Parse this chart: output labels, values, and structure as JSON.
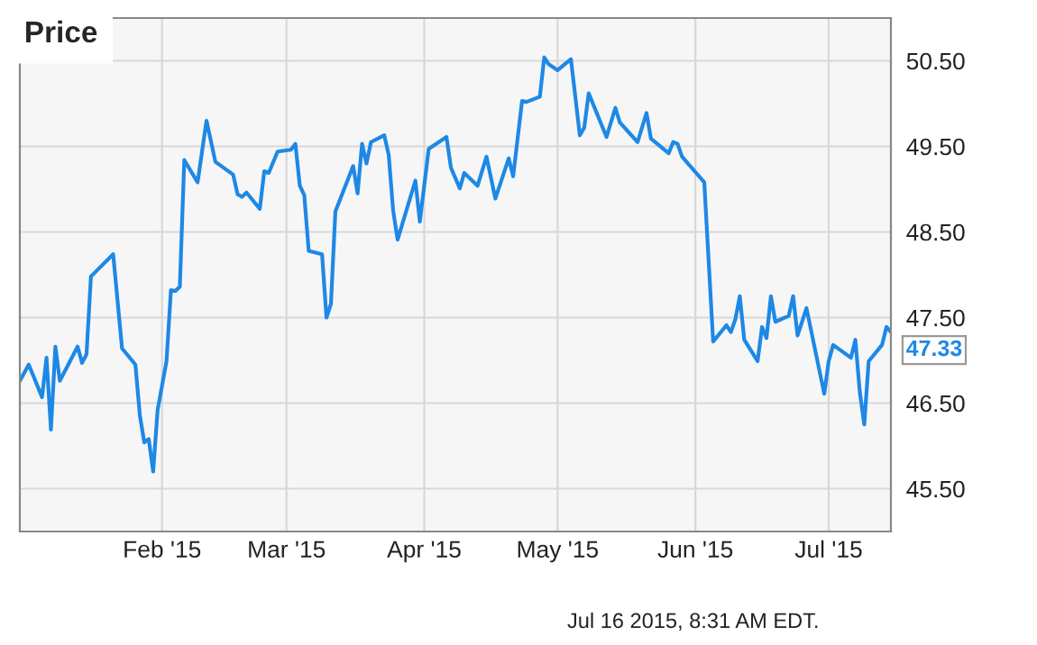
{
  "chart_data": {
    "type": "line",
    "title": "Price",
    "x": [
      "2014-12-31",
      "2015-01-02",
      "2015-01-05",
      "2015-01-06",
      "2015-01-07",
      "2015-01-08",
      "2015-01-09",
      "2015-01-13",
      "2015-01-14",
      "2015-01-15",
      "2015-01-16",
      "2015-01-21",
      "2015-01-23",
      "2015-01-26",
      "2015-01-27",
      "2015-01-28",
      "2015-01-29",
      "2015-01-30",
      "2015-01-31",
      "2015-02-02",
      "2015-02-03",
      "2015-02-04",
      "2015-02-05",
      "2015-02-06",
      "2015-02-09",
      "2015-02-11",
      "2015-02-13",
      "2015-02-17",
      "2015-02-18",
      "2015-02-19",
      "2015-02-20",
      "2015-02-23",
      "2015-02-24",
      "2015-02-25",
      "2015-02-27",
      "2015-03-02",
      "2015-03-03",
      "2015-03-04",
      "2015-03-05",
      "2015-03-06",
      "2015-03-09",
      "2015-03-10",
      "2015-03-11",
      "2015-03-12",
      "2015-03-16",
      "2015-03-17",
      "2015-03-18",
      "2015-03-19",
      "2015-03-20",
      "2015-03-23",
      "2015-03-24",
      "2015-03-25",
      "2015-03-26",
      "2015-03-30",
      "2015-03-31",
      "2015-04-02",
      "2015-04-06",
      "2015-04-07",
      "2015-04-09",
      "2015-04-10",
      "2015-04-13",
      "2015-04-15",
      "2015-04-17",
      "2015-04-20",
      "2015-04-21",
      "2015-04-23",
      "2015-04-24",
      "2015-04-27",
      "2015-04-28",
      "2015-04-29",
      "2015-05-01",
      "2015-05-04",
      "2015-05-06",
      "2015-05-07",
      "2015-05-08",
      "2015-05-12",
      "2015-05-14",
      "2015-05-15",
      "2015-05-19",
      "2015-05-21",
      "2015-05-22",
      "2015-05-26",
      "2015-05-27",
      "2015-05-28",
      "2015-05-29",
      "2015-06-03",
      "2015-06-05",
      "2015-06-08",
      "2015-06-09",
      "2015-06-10",
      "2015-06-11",
      "2015-06-12",
      "2015-06-15",
      "2015-06-16",
      "2015-06-17",
      "2015-06-18",
      "2015-06-19",
      "2015-06-22",
      "2015-06-23",
      "2015-06-24",
      "2015-06-26",
      "2015-06-30",
      "2015-07-01",
      "2015-07-02",
      "2015-07-06",
      "2015-07-07",
      "2015-07-08",
      "2015-07-09",
      "2015-07-10",
      "2015-07-13",
      "2015-07-14",
      "2015-07-15"
    ],
    "series": [
      {
        "color": "#1e88e5",
        "values": [
          46.76,
          46.95,
          46.57,
          47.03,
          46.19,
          47.16,
          46.76,
          47.16,
          46.97,
          47.07,
          47.98,
          48.24,
          47.14,
          46.95,
          46.36,
          46.04,
          46.08,
          45.7,
          46.42,
          46.99,
          47.82,
          47.81,
          47.86,
          49.34,
          49.08,
          49.8,
          49.32,
          49.17,
          48.94,
          48.91,
          48.96,
          48.77,
          49.21,
          49.19,
          49.44,
          49.46,
          49.53,
          49.04,
          48.93,
          48.28,
          48.24,
          47.5,
          47.66,
          48.74,
          49.27,
          48.95,
          49.53,
          49.3,
          49.55,
          49.63,
          49.4,
          48.75,
          48.41,
          49.1,
          48.62,
          49.47,
          49.61,
          49.25,
          49.01,
          49.19,
          49.04,
          49.38,
          48.89,
          49.36,
          49.15,
          50.03,
          50.02,
          50.08,
          50.54,
          50.46,
          50.39,
          50.52,
          49.63,
          49.72,
          50.12,
          49.61,
          49.95,
          49.78,
          49.55,
          49.89,
          49.59,
          49.42,
          49.55,
          49.53,
          49.38,
          49.08,
          47.22,
          47.41,
          47.33,
          47.48,
          47.75,
          47.24,
          46.99,
          47.39,
          47.26,
          47.75,
          47.45,
          47.52,
          47.75,
          47.29,
          47.61,
          46.61,
          46.99,
          47.18,
          47.03,
          47.24,
          46.63,
          46.25,
          46.99,
          47.18,
          47.39,
          47.33
        ],
        "value_labels": [
          null,
          null,
          null,
          null,
          null,
          null,
          null,
          null,
          null,
          null,
          null,
          null,
          null,
          null,
          null,
          null,
          null,
          null,
          null,
          null,
          null,
          null,
          null,
          null,
          null,
          null,
          null,
          null,
          null,
          null,
          null,
          null,
          null,
          null,
          null,
          null,
          null,
          null,
          null,
          null,
          null,
          null,
          null,
          null,
          null,
          null,
          null,
          null,
          null,
          null,
          null,
          null,
          null,
          null,
          null,
          null,
          null,
          null,
          null,
          null,
          null,
          null,
          null,
          null,
          null,
          null,
          null,
          null,
          null,
          null,
          null,
          null,
          null,
          null,
          null,
          null,
          null,
          null,
          null,
          null,
          null,
          null,
          null,
          null,
          null,
          null,
          null,
          null,
          null,
          null,
          null,
          null,
          null,
          null,
          null,
          null,
          null,
          null,
          null,
          null,
          null,
          null,
          null,
          null,
          null,
          null,
          null,
          null,
          null,
          null,
          null,
          "47.33"
        ]
      }
    ],
    "xlim": [
      "2014-12-31",
      "2015-07-15"
    ],
    "xticks": [
      {
        "value": "2015-02-01",
        "label": "Feb '15"
      },
      {
        "value": "2015-03-01",
        "label": "Mar '15"
      },
      {
        "value": "2015-04-01",
        "label": "Apr '15"
      },
      {
        "value": "2015-05-01",
        "label": "May '15"
      },
      {
        "value": "2015-06-01",
        "label": "Jun '15"
      },
      {
        "value": "2015-07-01",
        "label": "Jul '15"
      }
    ],
    "ylim": [
      45,
      51
    ],
    "yticks": [
      {
        "value": 45.5,
        "label": "45.50"
      },
      {
        "value": 46.5,
        "label": "46.50"
      },
      {
        "value": 47.5,
        "label": "47.50"
      },
      {
        "value": 48.5,
        "label": "48.50"
      },
      {
        "value": 49.5,
        "label": "49.50"
      },
      {
        "value": 50.5,
        "label": "50.50"
      }
    ],
    "grid": true,
    "line_style": "solid",
    "marker": "none",
    "annotations": [
      "Jul 16 2015, 8:31 AM EDT."
    ]
  }
}
